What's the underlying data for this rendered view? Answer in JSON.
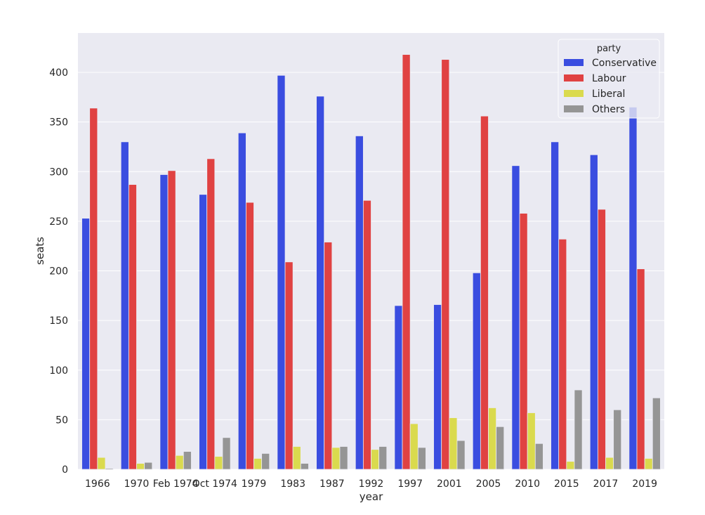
{
  "chart_data": {
    "type": "bar",
    "title": "",
    "xlabel": "year",
    "ylabel": "seats",
    "ylim": [
      0,
      435
    ],
    "yticks": [
      0,
      50,
      100,
      150,
      200,
      250,
      300,
      350,
      400
    ],
    "grid": true,
    "legend_title": "party",
    "legend_position": "top-right",
    "categories": [
      "1966",
      "1970",
      "Feb 1974",
      "Oct 1974",
      "1979",
      "1983",
      "1987",
      "1992",
      "1997",
      "2001",
      "2005",
      "2010",
      "2015",
      "2017",
      "2019"
    ],
    "series": [
      {
        "name": "Conservative",
        "color": "#3a4de0",
        "values": [
          253,
          330,
          297,
          277,
          339,
          397,
          376,
          336,
          165,
          166,
          198,
          306,
          330,
          317,
          365
        ]
      },
      {
        "name": "Labour",
        "color": "#e04242",
        "values": [
          364,
          287,
          301,
          313,
          269,
          209,
          229,
          271,
          418,
          413,
          356,
          258,
          232,
          262,
          202
        ]
      },
      {
        "name": "Liberal",
        "color": "#dada4e",
        "values": [
          12,
          6,
          14,
          13,
          11,
          23,
          22,
          20,
          46,
          52,
          62,
          57,
          8,
          12,
          11
        ]
      },
      {
        "name": "Others",
        "color": "#959595",
        "values": [
          1,
          7,
          18,
          32,
          16,
          6,
          23,
          23,
          22,
          29,
          43,
          26,
          80,
          60,
          72
        ]
      }
    ]
  }
}
